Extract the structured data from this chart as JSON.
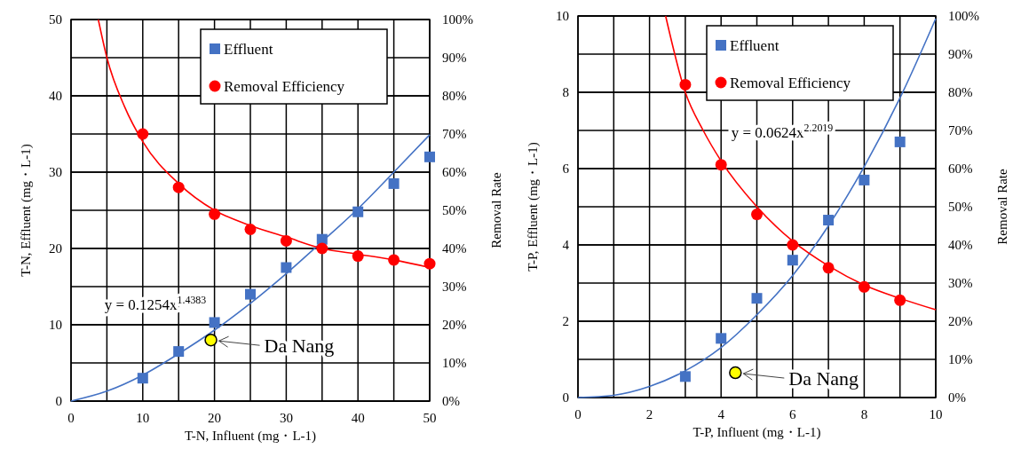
{
  "chart_data": [
    {
      "type": "scatter",
      "xlabel": "T-N, Influent  (mg・L-1)",
      "ylabel": "T-N, Effluent  (mg・L-1)",
      "y2label": "Removal Rate",
      "xlim": [
        0,
        50
      ],
      "xticks": [
        0,
        {
          "value": 5,
          "label": null
        },
        10,
        {
          "value": 15,
          "label": null
        },
        20,
        {
          "value": 25,
          "label": null
        },
        30,
        {
          "value": 35,
          "label": null
        },
        40,
        {
          "value": 45,
          "label": null
        },
        50
      ],
      "ylim": [
        0,
        50
      ],
      "yticks": [
        0,
        10,
        20,
        30,
        40,
        50
      ],
      "y2lim": [
        0,
        100
      ],
      "y2ticks": [
        {
          "value": 0,
          "label": "0%"
        },
        {
          "value": 10,
          "label": "10%"
        },
        {
          "value": 20,
          "label": "20%"
        },
        {
          "value": 30,
          "label": "30%"
        },
        {
          "value": 40,
          "label": "40%"
        },
        {
          "value": 50,
          "label": "50%"
        },
        {
          "value": 60,
          "label": "60%"
        },
        {
          "value": 70,
          "label": "70%"
        },
        {
          "value": 80,
          "label": "80%"
        },
        {
          "value": 90,
          "label": "90%"
        },
        {
          "value": 100,
          "label": "100%"
        }
      ],
      "grid": true,
      "legend": "top right",
      "series": [
        {
          "name": "Effluent",
          "marker": "square",
          "color": "#4472c4",
          "x": [
            10,
            15,
            20,
            25,
            30,
            35,
            40,
            45,
            50
          ],
          "values": [
            3,
            6.5,
            10.3,
            14,
            17.5,
            21.2,
            24.8,
            28.5,
            32
          ]
        },
        {
          "name": "Removal Efficiency",
          "marker": "circle",
          "axis": "y2",
          "color": "#ff0000",
          "x": [
            10,
            15,
            20,
            25,
            30,
            35,
            40,
            45,
            50
          ],
          "values": [
            70,
            56,
            49,
            45,
            42,
            40,
            38,
            37,
            36
          ]
        },
        {
          "type": "line",
          "marker": "none",
          "color": "#4472c4",
          "x": [
            0,
            5,
            10,
            15,
            20,
            25,
            30,
            35,
            40,
            45,
            50
          ],
          "values": [
            0,
            1.3,
            3.4,
            6.2,
            9.3,
            12.8,
            16.7,
            20.9,
            25.2,
            30,
            34.9
          ]
        },
        {
          "type": "line",
          "marker": "none",
          "axis": "y2",
          "color": "#ff0000",
          "x": [
            3.8,
            5,
            7.5,
            10,
            15,
            20,
            25,
            30,
            35,
            40,
            45,
            50
          ],
          "values": [
            100,
            90,
            77,
            68,
            57,
            50,
            46,
            43,
            40,
            38.5,
            37,
            35
          ]
        },
        {
          "marker": "circle",
          "color": "#ffff00",
          "x": [
            19.5
          ],
          "values": [
            8
          ]
        }
      ],
      "annotations": [
        "y = 0.1254x$^{1.4383}$",
        {
          "text": "Da Nang",
          "x": 19.5,
          "y": 8
        }
      ]
    },
    {
      "type": "scatter",
      "xlabel": "T-P, Influent  (mg・L-1)",
      "ylabel": "T-P, Effluent  (mg・L-1)",
      "y2label": "Removal Rate",
      "xlim": [
        0,
        10
      ],
      "xticks": [
        0,
        {
          "value": 1,
          "label": null
        },
        2,
        {
          "value": 3,
          "label": null
        },
        4,
        {
          "value": 5,
          "label": null
        },
        6,
        {
          "value": 7,
          "label": null
        },
        8,
        {
          "value": 9,
          "label": null
        },
        10
      ],
      "ylim": [
        0,
        10
      ],
      "yticks": [
        0,
        2,
        4,
        6,
        8,
        10
      ],
      "y2lim": [
        0,
        100
      ],
      "y2ticks": [
        {
          "value": 0,
          "label": "0%"
        },
        {
          "value": 10,
          "label": "10%"
        },
        {
          "value": 20,
          "label": "20%"
        },
        {
          "value": 30,
          "label": "30%"
        },
        {
          "value": 40,
          "label": "40%"
        },
        {
          "value": 50,
          "label": "50%"
        },
        {
          "value": 60,
          "label": "60%"
        },
        {
          "value": 70,
          "label": "70%"
        },
        {
          "value": 80,
          "label": "80%"
        },
        {
          "value": 90,
          "label": "90%"
        },
        {
          "value": 100,
          "label": "100%"
        }
      ],
      "grid": true,
      "legend": "top right",
      "series": [
        {
          "name": "Effluent",
          "marker": "square",
          "color": "#4472c4",
          "x": [
            3,
            4,
            5,
            6,
            7,
            8,
            9
          ],
          "values": [
            0.55,
            1.55,
            2.6,
            3.6,
            4.65,
            5.7,
            6.7
          ]
        },
        {
          "name": "Removal Efficiency",
          "marker": "circle",
          "axis": "y2",
          "color": "#ff0000",
          "x": [
            3,
            4,
            5,
            6,
            7,
            8,
            9
          ],
          "values": [
            82,
            61,
            48,
            40,
            34,
            29,
            25.5
          ]
        },
        {
          "type": "line",
          "marker": "none",
          "color": "#4472c4",
          "x": [
            0,
            1,
            2,
            3,
            4,
            5,
            6,
            7,
            8,
            9,
            10
          ],
          "values": [
            0,
            0.06,
            0.29,
            0.7,
            1.31,
            2.17,
            3.2,
            4.5,
            6.05,
            7.85,
            9.93
          ]
        },
        {
          "type": "line",
          "marker": "none",
          "axis": "y2",
          "color": "#ff0000",
          "x": [
            2.45,
            3,
            3.5,
            4,
            5,
            6,
            7,
            8,
            9,
            10
          ],
          "values": [
            100,
            80,
            70,
            62,
            50,
            41,
            34.5,
            29.5,
            26,
            23
          ]
        },
        {
          "marker": "circle",
          "color": "#ffff00",
          "x": [
            4.4
          ],
          "values": [
            0.65
          ]
        }
      ],
      "annotations": [
        "y = 0.0624x$^{2.2019}$",
        {
          "text": "Da Nang",
          "x": 4.4,
          "y": 0.65
        }
      ]
    }
  ]
}
